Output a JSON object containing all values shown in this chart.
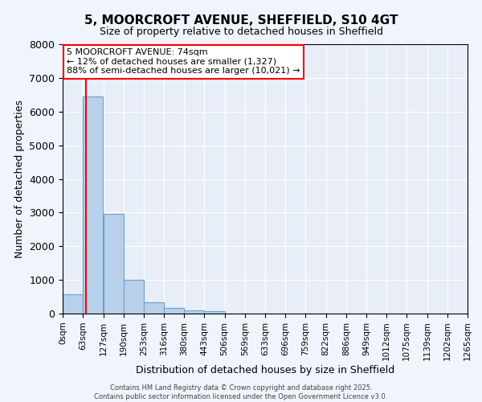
{
  "title1": "5, MOORCROFT AVENUE, SHEFFIELD, S10 4GT",
  "title2": "Size of property relative to detached houses in Sheffield",
  "xlabel": "Distribution of detached houses by size in Sheffield",
  "ylabel": "Number of detached properties",
  "bar_color": "#b8d0ea",
  "bar_edge_color": "#6ba3c8",
  "background_color": "#e8eef8",
  "fig_background_color": "#f0f4fc",
  "grid_color": "#ffffff",
  "bins": [
    0,
    63,
    127,
    190,
    253,
    316,
    380,
    443,
    506,
    569,
    633,
    696,
    759,
    822,
    886,
    949,
    1012,
    1075,
    1139,
    1202,
    1265
  ],
  "bin_labels": [
    "0sqm",
    "63sqm",
    "127sqm",
    "190sqm",
    "253sqm",
    "316sqm",
    "380sqm",
    "443sqm",
    "506sqm",
    "569sqm",
    "633sqm",
    "696sqm",
    "759sqm",
    "822sqm",
    "886sqm",
    "949sqm",
    "1012sqm",
    "1075sqm",
    "1139sqm",
    "1202sqm",
    "1265sqm"
  ],
  "values": [
    580,
    6450,
    2970,
    1000,
    340,
    160,
    90,
    70,
    0,
    0,
    0,
    0,
    0,
    0,
    0,
    0,
    0,
    0,
    0,
    0
  ],
  "ylim": [
    0,
    8000
  ],
  "yticks": [
    0,
    1000,
    2000,
    3000,
    4000,
    5000,
    6000,
    7000,
    8000
  ],
  "red_line_x": 74,
  "annotation_line1": "5 MOORCROFT AVENUE: 74sqm",
  "annotation_line2": "← 12% of detached houses are smaller (1,327)",
  "annotation_line3": "88% of semi-detached houses are larger (10,021) →",
  "footer_text1": "Contains HM Land Registry data © Crown copyright and database right 2025.",
  "footer_text2": "Contains public sector information licensed under the Open Government Licence v3.0."
}
